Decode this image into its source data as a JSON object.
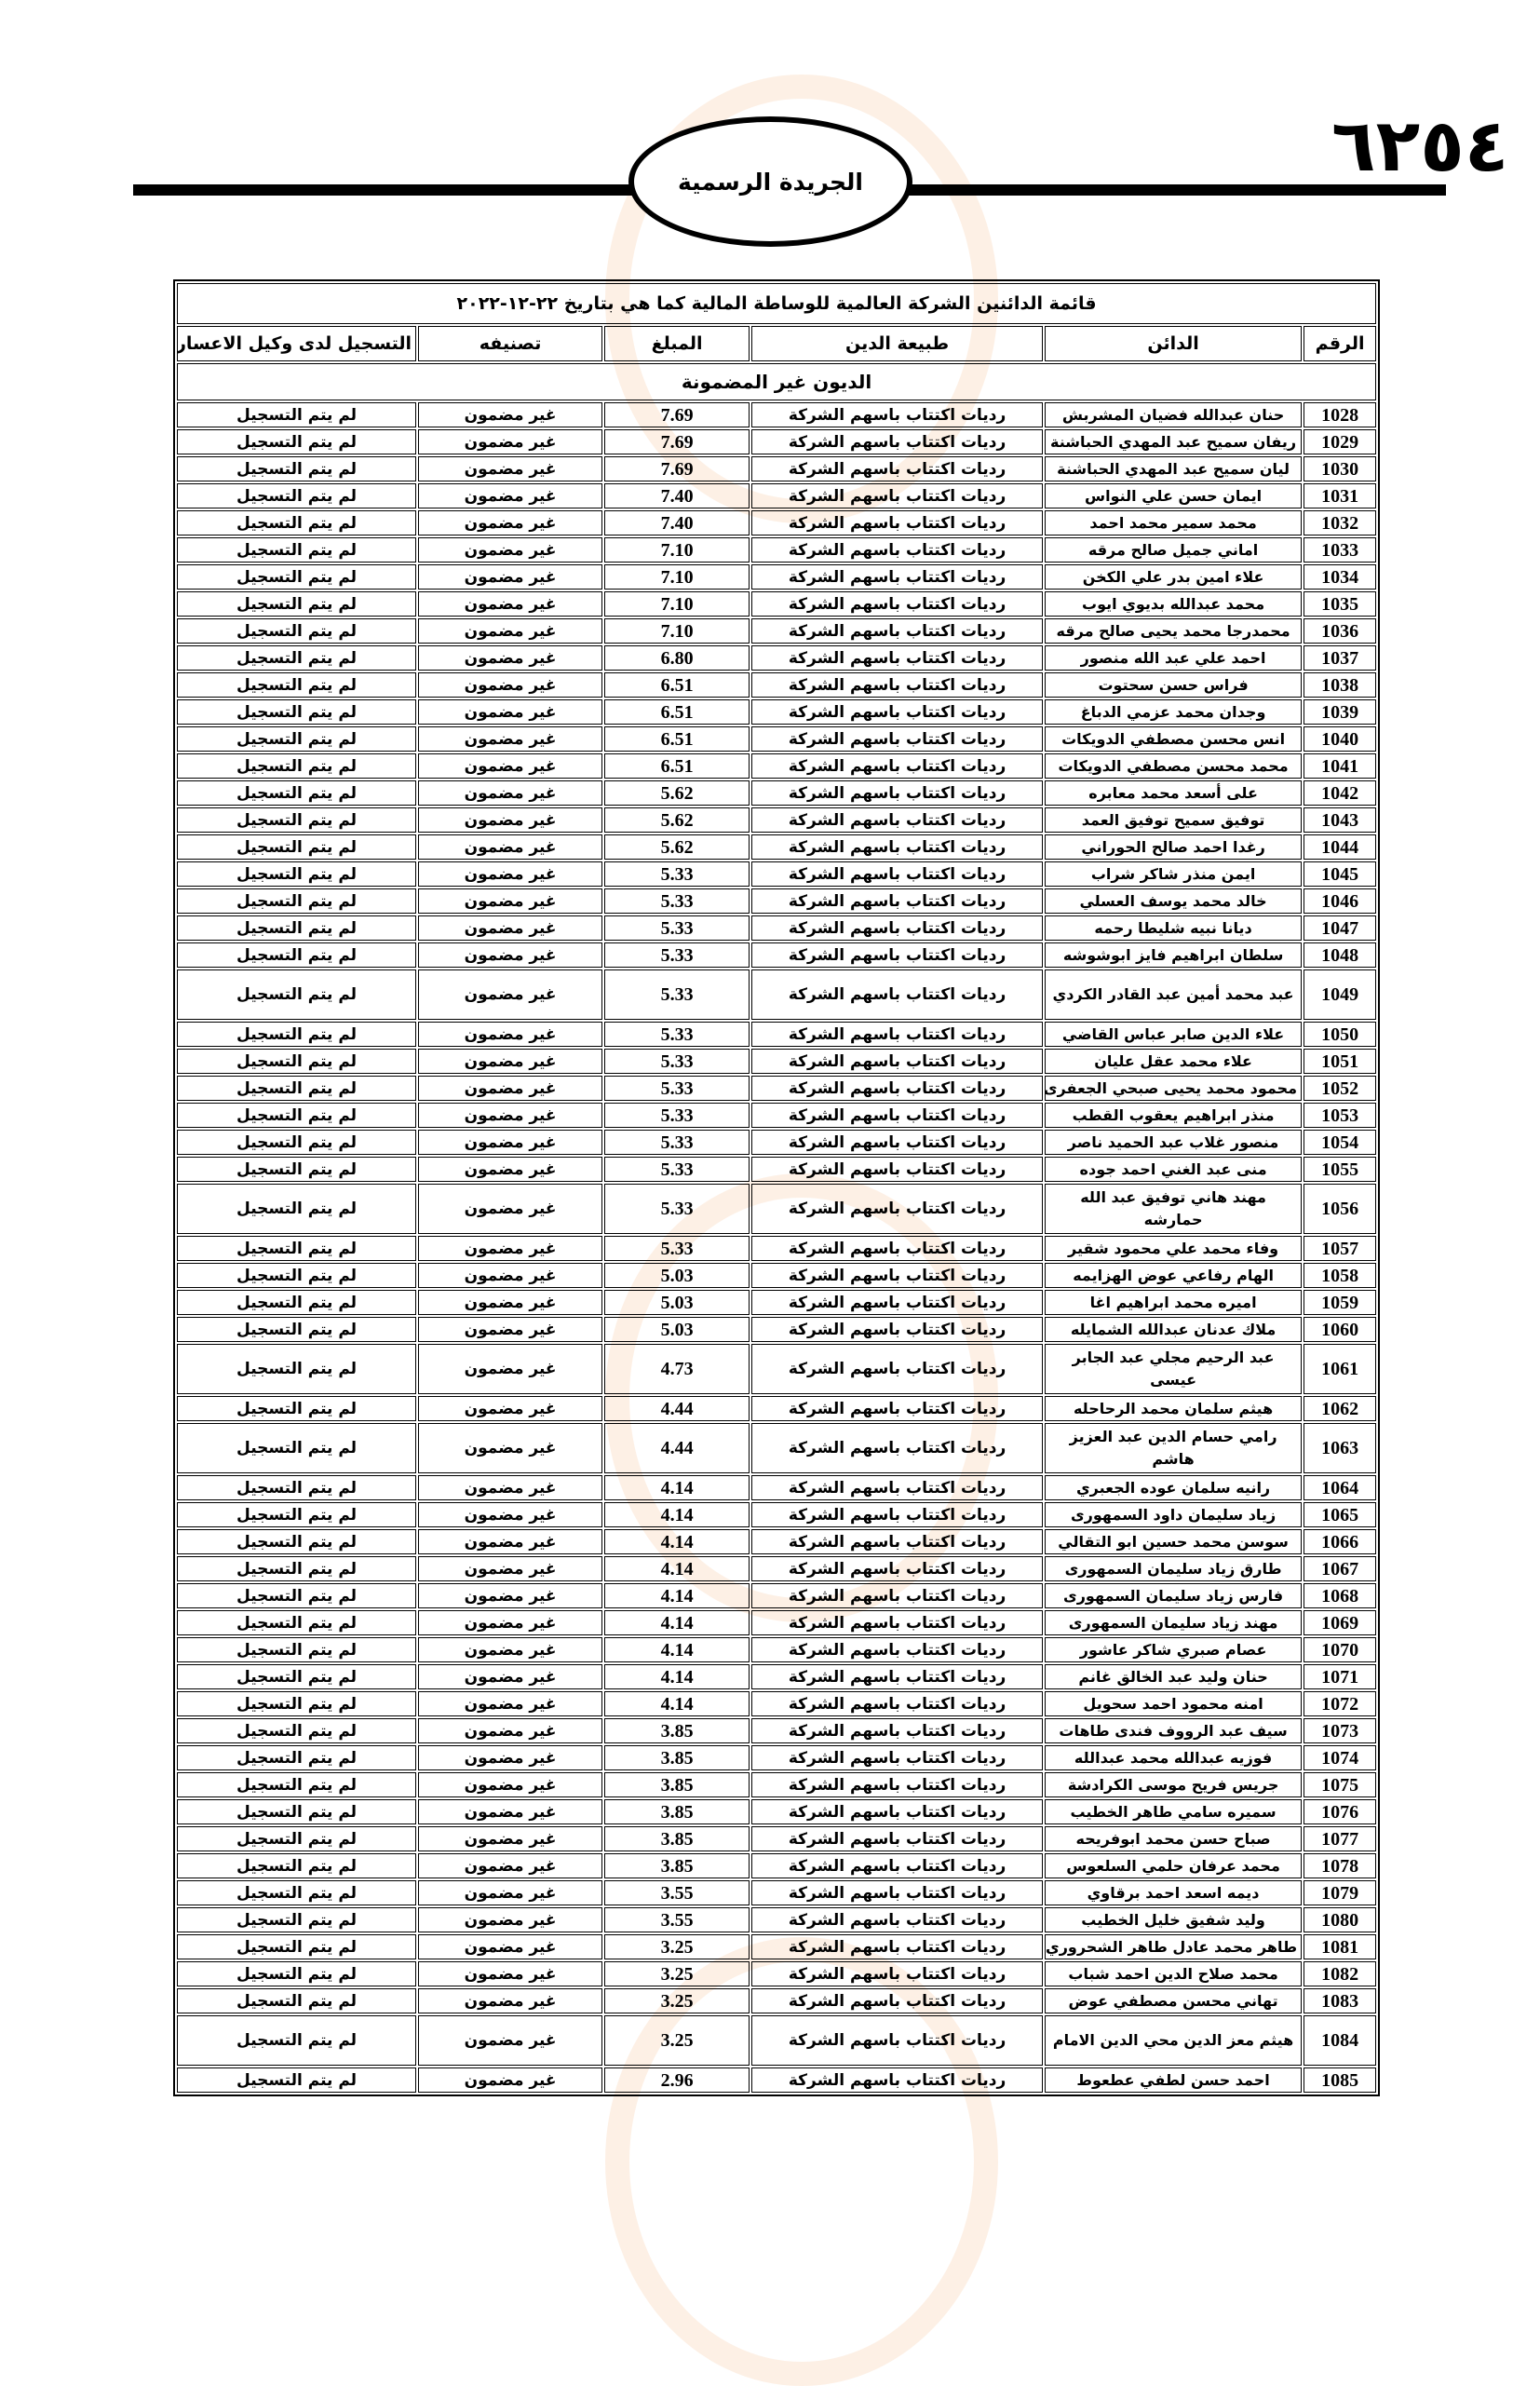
{
  "header": {
    "page_number": "٦٢٥٤",
    "gazette_title": "الجريدة الرسمية"
  },
  "table": {
    "title": "قائمة الدائنين الشركة العالمية للوساطة المالية  كما هي بتاريخ ٢٢-١٢-٢٠٢٢",
    "columns": [
      "الرقم",
      "الدائن",
      "طبيعة الدين",
      "المبلغ",
      "تصنيفه",
      "التسجيل لدى وكيل الاعسار"
    ],
    "section": "الديون غير المضمونة",
    "debt_nature": "رديات اكتتاب باسهم الشركة",
    "classification": "غير مضمون",
    "registration": "لم يتم التسجيل",
    "rows": [
      [
        "1028",
        "حنان عبدالله فضيان المشربش",
        "7.69"
      ],
      [
        "1029",
        "ريفان سميح عبد المهدي الحباشنة",
        "7.69"
      ],
      [
        "1030",
        "ليان سميح عبد المهدي الحباشنة",
        "7.69"
      ],
      [
        "1031",
        "ايمان حسن علي النواس",
        "7.40"
      ],
      [
        "1032",
        "محمد سمير محمد احمد",
        "7.40"
      ],
      [
        "1033",
        "اماني جميل صالح مرقه",
        "7.10"
      ],
      [
        "1034",
        "علاء امين بدر علي الكخن",
        "7.10"
      ],
      [
        "1035",
        "محمد عبدالله بديوي ايوب",
        "7.10"
      ],
      [
        "1036",
        "محمدرجا محمد يحيى صالح مرقه",
        "7.10"
      ],
      [
        "1037",
        "احمد علي عبد  الله منصور",
        "6.80"
      ],
      [
        "1038",
        "فراس حسن سحتوت",
        "6.51"
      ],
      [
        "1039",
        "وجدان محمد عزمي الدباغ",
        "6.51"
      ],
      [
        "1040",
        "انس محسن مصطفي الدويكات",
        "6.51"
      ],
      [
        "1041",
        "محمد محسن مصطفي الدويكات",
        "6.51"
      ],
      [
        "1042",
        "على أسعد محمد معابره",
        "5.62"
      ],
      [
        "1043",
        "توفيق سميح توفيق العمد",
        "5.62"
      ],
      [
        "1044",
        "رغدا احمد صالح الحوراني",
        "5.62"
      ],
      [
        "1045",
        "ايمن منذر شاكر شراب",
        "5.33"
      ],
      [
        "1046",
        "خالد محمد يوسف العسلي",
        "5.33"
      ],
      [
        "1047",
        "ديانا نبيه شليطا رحمه",
        "5.33"
      ],
      [
        "1048",
        "سلطان ابراهيم فايز ابوشوشه",
        "5.33"
      ],
      [
        "1049",
        "عبد محمد أمين عبد القادر الكردي",
        "5.33"
      ],
      [
        "1050",
        "علاء الدين صابر عباس القاضي",
        "5.33"
      ],
      [
        "1051",
        "علاء محمد عقل عليان",
        "5.33"
      ],
      [
        "1052",
        "محمود محمد يحيى صبحي الجعفرى",
        "5.33"
      ],
      [
        "1053",
        "منذر ابراهيم يعقوب القطب",
        "5.33"
      ],
      [
        "1054",
        "منصور غلاب عبد الحميد ناصر",
        "5.33"
      ],
      [
        "1055",
        "منى عبد الغني احمد جوده",
        "5.33"
      ],
      [
        "1056",
        "مهند هاني توفيق عبد الله حمارشه",
        "5.33"
      ],
      [
        "1057",
        "وفاء محمد علي محمود شقير",
        "5.33"
      ],
      [
        "1058",
        "الهام رفاعي عوض الهزايمه",
        "5.03"
      ],
      [
        "1059",
        "اميره محمد ابراهيم اغا",
        "5.03"
      ],
      [
        "1060",
        "ملاك عدنان عبدالله الشمايله",
        "5.03"
      ],
      [
        "1061",
        "عبد الرحيم مجلي عبد الجابر عيسى",
        "4.73"
      ],
      [
        "1062",
        "هيثم سلمان محمد الرحاحله",
        "4.44"
      ],
      [
        "1063",
        "رامي حسام الدين عبد العزيز هاشم",
        "4.44"
      ],
      [
        "1064",
        "رانيه سلمان عوده الجعبري",
        "4.14"
      ],
      [
        "1065",
        "زياد سليمان داود السمهورى",
        "4.14"
      ],
      [
        "1066",
        "سوسن محمد حسين ابو التقالي",
        "4.14"
      ],
      [
        "1067",
        "طارق زياد سليمان السمهورى",
        "4.14"
      ],
      [
        "1068",
        "فارس زياد سليمان السمهورى",
        "4.14"
      ],
      [
        "1069",
        "مهند زياد سليمان السمهورى",
        "4.14"
      ],
      [
        "1070",
        "عصام صبري شاكر عاشور",
        "4.14"
      ],
      [
        "1071",
        "حنان وليد عبد الخالق غانم",
        "4.14"
      ],
      [
        "1072",
        "امنه محمود احمد سحويل",
        "4.14"
      ],
      [
        "1073",
        "سيف عبد الرووف فندى طاهات",
        "3.85"
      ],
      [
        "1074",
        "فوزيه عبدالله محمد عبدالله",
        "3.85"
      ],
      [
        "1075",
        "جريس فريح موسى الكرادشة",
        "3.85"
      ],
      [
        "1076",
        "سميره سامي طاهر الخطيب",
        "3.85"
      ],
      [
        "1077",
        "صباح حسن محمد ابوفريحه",
        "3.85"
      ],
      [
        "1078",
        "محمد عرفان حلمي السلعوس",
        "3.85"
      ],
      [
        "1079",
        "ديمه اسعد احمد برقاوي",
        "3.55"
      ],
      [
        "1080",
        "وليد شفيق خليل الخطيب",
        "3.55"
      ],
      [
        "1081",
        "طاهر محمد عادل طاهر الشحروري",
        "3.25"
      ],
      [
        "1082",
        "محمد صلاح الدين احمد شباب",
        "3.25"
      ],
      [
        "1083",
        "تهاني محسن مصطفي عوض",
        "3.25"
      ],
      [
        "1084",
        "هيثم معز الدين محي الدين الامام",
        "3.25"
      ],
      [
        "1085",
        "احمد حسن لطفي عطعوط",
        "2.96"
      ]
    ]
  }
}
